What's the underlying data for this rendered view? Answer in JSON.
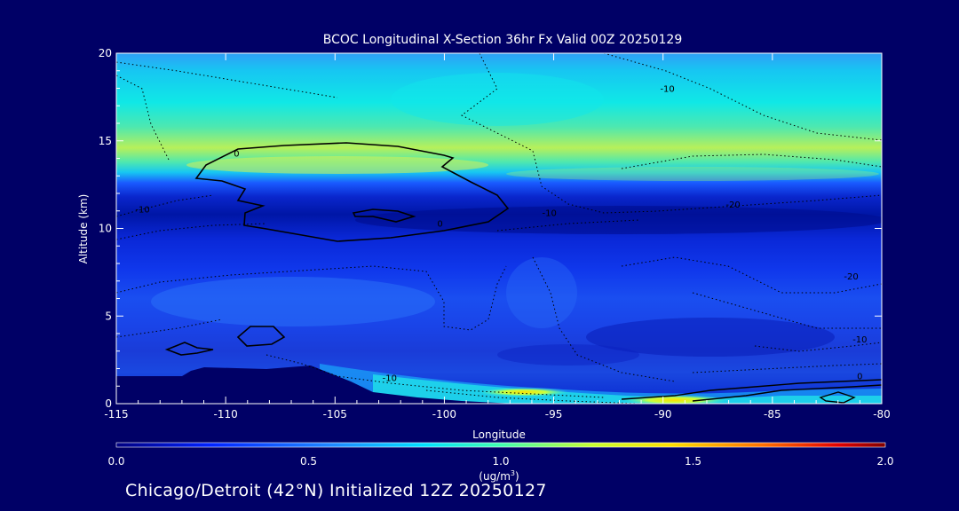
{
  "chart_data": {
    "type": "heatmap",
    "title": "BCOC Longitudinal X-Section 36hr  Fx Valid 00Z 20250129",
    "xlabel": "Longitude",
    "ylabel": "Altitude (km)",
    "xlim": [
      -115,
      -80
    ],
    "ylim": [
      0,
      20
    ],
    "x_ticks": [
      "-115",
      "-110",
      "-105",
      "-100",
      "-95",
      "-90",
      "-85",
      "-80"
    ],
    "y_ticks": [
      "0",
      "5",
      "10",
      "15",
      "20"
    ],
    "colorbar": {
      "range": [
        0.0,
        2.0
      ],
      "ticks": [
        "0.0",
        "0.5",
        "1.0",
        "1.5",
        "2.0"
      ],
      "unit_line1": "(ug/m",
      "unit_sup": "3",
      "unit_line2": ")"
    },
    "contour_labels": [
      {
        "text": "0",
        "lon": -109.5,
        "alt": 14.1
      },
      {
        "text": "0",
        "lon": -100.2,
        "alt": 10.1
      },
      {
        "text": "-10",
        "lon": -89.8,
        "alt": 17.8
      },
      {
        "text": "-10",
        "lon": -95.2,
        "alt": 10.7
      },
      {
        "text": "-20",
        "lon": -86.8,
        "alt": 11.2
      },
      {
        "text": "-20",
        "lon": -81.4,
        "alt": 7.1
      },
      {
        "text": "-10",
        "lon": -113.8,
        "alt": 10.9
      },
      {
        "text": "-10",
        "lon": -102.5,
        "alt": 1.3
      },
      {
        "text": "-10",
        "lon": -81.0,
        "alt": 3.5
      },
      {
        "text": "0",
        "lon": -81.0,
        "alt": 1.4
      }
    ],
    "colors": {
      "background": "#000066",
      "axes": "#ffffff",
      "contour": "#000000"
    }
  },
  "footer": "Chicago/Detroit (42°N) Initialized 12Z 20250127"
}
